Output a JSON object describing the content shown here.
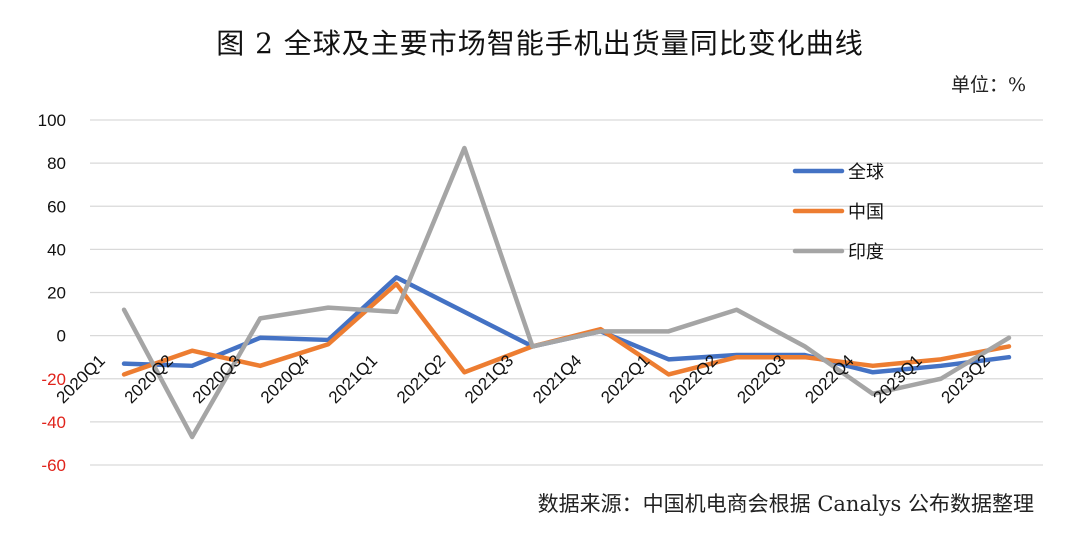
{
  "title": "图 2   全球及主要市场智能手机出货量同比变化曲线",
  "unit": "单位：%",
  "source": "数据来源：中国机电商会根据 Canalys 公布数据整理",
  "chart_data": {
    "type": "line",
    "title": "图 2   全球及主要市场智能手机出货量同比变化曲线",
    "xlabel": "",
    "ylabel": "",
    "ylim": [
      -60,
      100
    ],
    "yticks": [
      100,
      80,
      60,
      40,
      20,
      0,
      -20,
      -40,
      -60
    ],
    "grid": true,
    "legend_position": "right",
    "categories": [
      "2020Q1",
      "2020Q2",
      "2020Q3",
      "2020Q4",
      "2021Q1",
      "2021Q2",
      "2021Q3",
      "2021Q4",
      "2022Q1",
      "2022Q2",
      "2022Q3",
      "2022Q4",
      "2023Q1",
      "2023Q2"
    ],
    "series": [
      {
        "name": "全球",
        "color": "#4472C4",
        "values": [
          -13,
          -14,
          -1,
          -2,
          27,
          11,
          -5,
          2,
          -11,
          -9,
          -9,
          -17,
          -14,
          -10
        ]
      },
      {
        "name": "中国",
        "color": "#ED7D31",
        "values": [
          -18,
          -7,
          -14,
          -4,
          24,
          -17,
          -5,
          3,
          -18,
          -10,
          -10,
          -14,
          -11,
          -5
        ]
      },
      {
        "name": "印度",
        "color": "#A5A5A5",
        "values": [
          12,
          -47,
          8,
          13,
          11,
          87,
          -5,
          2,
          2,
          12,
          -5,
          -27,
          -20,
          -1
        ]
      }
    ]
  }
}
